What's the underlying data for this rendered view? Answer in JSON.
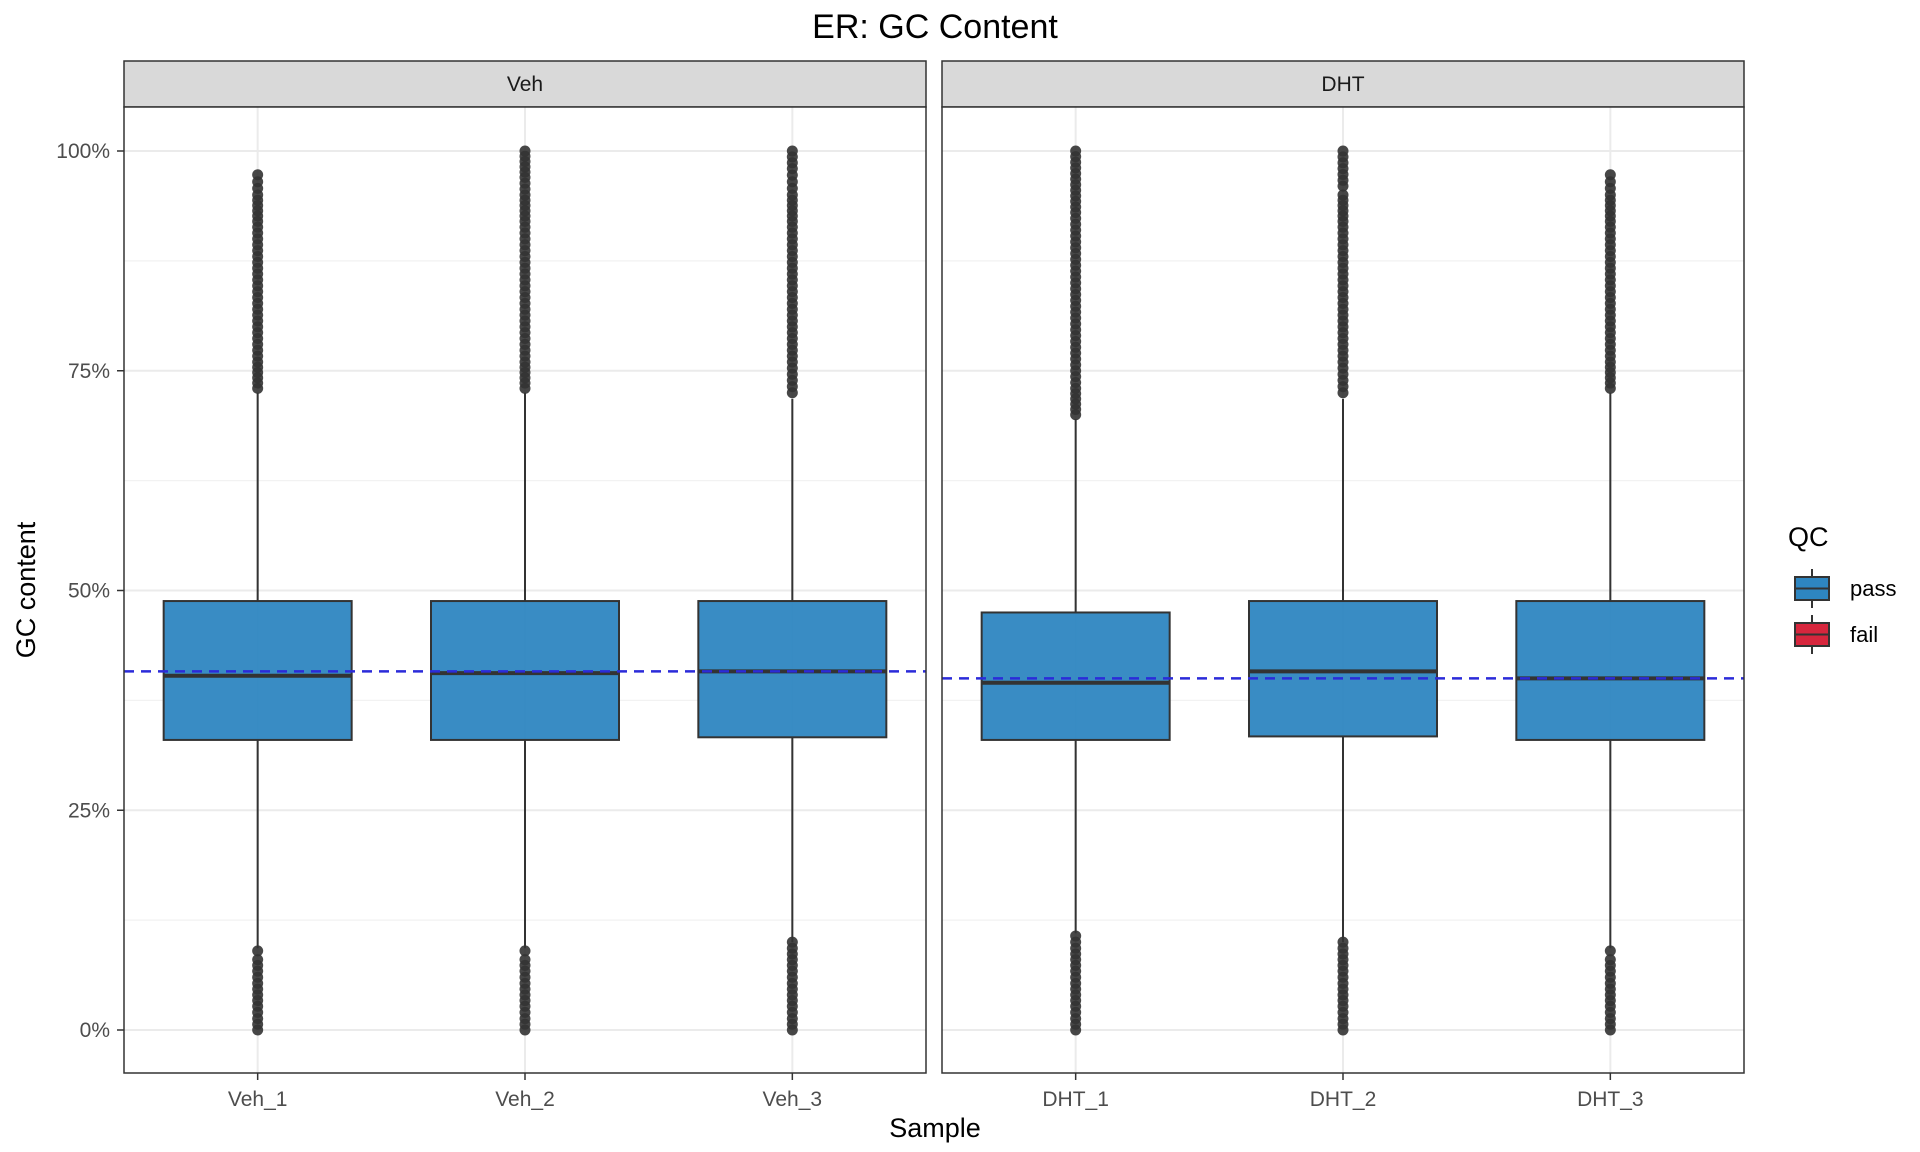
{
  "chart_data": {
    "type": "box",
    "title": "ER: GC Content",
    "xlabel": "Sample",
    "ylabel": "GC content",
    "ylim": [
      -5,
      105
    ],
    "yticks": [
      0,
      25,
      50,
      75,
      100
    ],
    "ytick_labels": [
      "0%",
      "25%",
      "50%",
      "75%",
      "100%"
    ],
    "grid": true,
    "legend": {
      "title": "QC",
      "position": "right",
      "items": [
        {
          "label": "pass",
          "color": "#2E86C1"
        },
        {
          "label": "fail",
          "color": "#D7263D"
        }
      ]
    },
    "panels": [
      {
        "name": "Veh",
        "reference_line": 40.8,
        "boxes": [
          {
            "sample": "Veh_1",
            "qc": "pass",
            "q1": 33.0,
            "median": 40.3,
            "q3": 48.8,
            "whisker_low": 9.3,
            "whisker_high": 72.5,
            "outliers_low": [
              0,
              1.3,
              2.7,
              4.0,
              5.3,
              6.7,
              8.0,
              9.0
            ],
            "outliers_high": [
              73.0,
              76.0,
              80.0,
              84.0,
              88.0,
              92.0,
              95.0,
              96.5,
              97.3
            ]
          },
          {
            "sample": "Veh_2",
            "qc": "pass",
            "q1": 33.0,
            "median": 40.6,
            "q3": 48.8,
            "whisker_low": 9.3,
            "whisker_high": 72.5,
            "outliers_low": [
              0,
              1.3,
              2.7,
              4.0,
              5.3,
              6.7,
              8.0,
              9.0
            ],
            "outliers_high": [
              73.0,
              76.0,
              80.0,
              84.0,
              88.0,
              92.0,
              95.0,
              97.0,
              100.0
            ]
          },
          {
            "sample": "Veh_3",
            "qc": "pass",
            "q1": 33.3,
            "median": 40.8,
            "q3": 48.8,
            "whisker_low": 10.0,
            "whisker_high": 71.8,
            "outliers_low": [
              0,
              1.3,
              2.7,
              4.0,
              5.3,
              6.7,
              8.0,
              9.3,
              10.0
            ],
            "outliers_high": [
              72.5,
              76.0,
              80.0,
              84.0,
              88.0,
              92.0,
              95.0,
              96.5,
              98.0,
              100.0
            ]
          }
        ]
      },
      {
        "name": "DHT",
        "reference_line": 40.0,
        "boxes": [
          {
            "sample": "DHT_1",
            "qc": "pass",
            "q1": 33.0,
            "median": 39.5,
            "q3": 47.5,
            "whisker_low": 11.0,
            "whisker_high": 69.5,
            "outliers_low": [
              0,
              1.3,
              2.7,
              4.0,
              5.3,
              6.7,
              8.0,
              9.3,
              10.7
            ],
            "outliers_high": [
              70.0,
              73.0,
              77.0,
              81.0,
              85.0,
              89.0,
              93.0,
              96.8,
              100.0
            ]
          },
          {
            "sample": "DHT_2",
            "qc": "pass",
            "q1": 33.4,
            "median": 40.8,
            "q3": 48.8,
            "whisker_low": 10.0,
            "whisker_high": 71.8,
            "outliers_low": [
              0,
              1.3,
              2.7,
              4.0,
              5.3,
              6.7,
              8.0,
              9.3,
              10.0
            ],
            "outliers_high": [
              72.5,
              76.0,
              80.0,
              84.0,
              88.0,
              92.0,
              95.0,
              96.0,
              100.0
            ]
          },
          {
            "sample": "DHT_3",
            "qc": "pass",
            "q1": 33.0,
            "median": 40.0,
            "q3": 48.8,
            "whisker_low": 9.3,
            "whisker_high": 72.5,
            "outliers_low": [
              0,
              1.3,
              2.7,
              4.0,
              5.3,
              6.7,
              8.0,
              9.0
            ],
            "outliers_high": [
              73.0,
              76.0,
              80.0,
              84.0,
              88.0,
              92.0,
              95.0,
              96.5,
              97.3
            ]
          }
        ]
      }
    ]
  }
}
